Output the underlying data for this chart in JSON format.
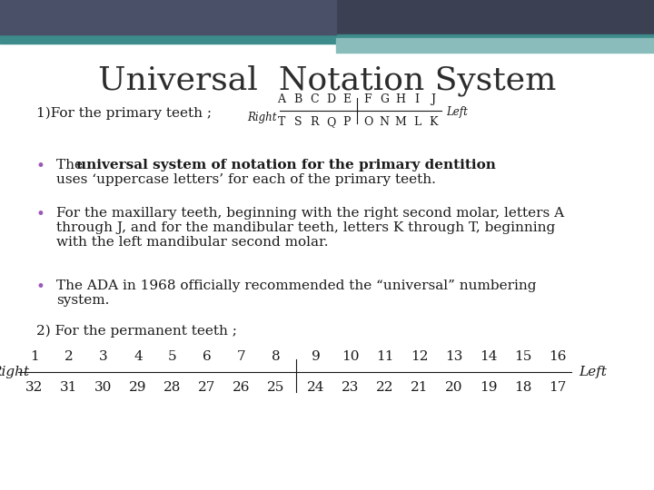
{
  "title": "Universal  Notation System",
  "title_fontsize": 26,
  "title_color": "#2c2c2c",
  "bg_color": "#ffffff",
  "header_dark_color": "#3b4053",
  "header_teal_color": "#3d8b8b",
  "header_light_color": "#8bbcbc",
  "subtitle1": "1)For the primary teeth ;",
  "subtitle2": "2) For the permanent teeth ;",
  "body_fontsize": 11,
  "small_fontsize": 9,
  "bullet_color": "#9b59b6",
  "bullet1_bold": "universal system of notation for the primary dentition",
  "bullet1_normal1": "The ",
  "bullet1_normal2": "uses ‘uppercase letters’ for each of the primary teeth.",
  "bullet2": "For the maxillary teeth, beginning with the right second molar, letters A\nthrough J, and for the mandibular teeth, letters K through T, beginning\nwith the left mandibular second molar.",
  "bullet3": "The ADA in 1968 officially recommended the “universal” numbering\nsystem.",
  "primary_top": [
    "A",
    "B",
    "C",
    "D",
    "E",
    "F",
    "G",
    "H",
    "I",
    "J"
  ],
  "primary_bot": [
    "T",
    "S",
    "R",
    "Q",
    "P",
    "O",
    "N",
    "M",
    "L",
    "K"
  ],
  "perm_top": [
    "1",
    "2",
    "3",
    "4",
    "5",
    "6",
    "7",
    "8",
    "9",
    "10",
    "11",
    "12",
    "13",
    "14",
    "15",
    "16"
  ],
  "perm_bot": [
    "32",
    "31",
    "30",
    "29",
    "28",
    "27",
    "26",
    "25",
    "24",
    "23",
    "22",
    "21",
    "20",
    "19",
    "18",
    "17"
  ]
}
